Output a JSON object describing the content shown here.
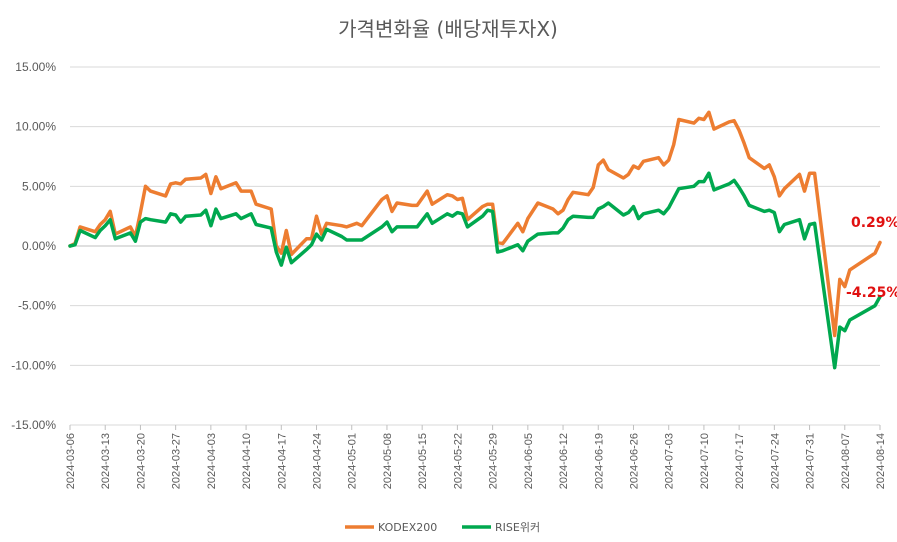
{
  "chart_data": {
    "type": "line",
    "title": "가격변화율 (배당재투자X)",
    "xlabel": "",
    "ylabel": "",
    "ylim": [
      -0.15,
      0.15
    ],
    "yticks": [
      0.15,
      0.1,
      0.05,
      0.0,
      -0.05,
      -0.1,
      -0.15
    ],
    "ytick_labels": [
      "15.00%",
      "10.00%",
      "5.00%",
      "0.00%",
      "-5.00%",
      "-10.00%",
      "-15.00%"
    ],
    "grid": true,
    "legend_position": "bottom",
    "x_tick_labels": [
      "2024-03-06",
      "2024-03-13",
      "2024-03-20",
      "2024-03-27",
      "2024-04-03",
      "2024-04-10",
      "2024-04-17",
      "2024-04-24",
      "2024-05-01",
      "2024-05-08",
      "2024-05-15",
      "2024-05-22",
      "2024-05-29",
      "2024-06-05",
      "2024-06-12",
      "2024-06-19",
      "2024-06-26",
      "2024-07-03",
      "2024-07-10",
      "2024-07-17",
      "2024-07-24",
      "2024-07-31",
      "2024-08-07",
      "2024-08-14"
    ],
    "x_start": "2024-03-06",
    "x_end": "2024-08-14",
    "series": [
      {
        "name": "KODEX200",
        "color": "#ED7D31",
        "end_label": "0.29%",
        "points": [
          [
            "2024-03-06",
            0.0
          ],
          [
            "2024-03-07",
            0.002
          ],
          [
            "2024-03-08",
            0.016
          ],
          [
            "2024-03-11",
            0.012
          ],
          [
            "2024-03-12",
            0.018
          ],
          [
            "2024-03-13",
            0.022
          ],
          [
            "2024-03-14",
            0.029
          ],
          [
            "2024-03-15",
            0.01
          ],
          [
            "2024-03-18",
            0.016
          ],
          [
            "2024-03-19",
            0.008
          ],
          [
            "2024-03-20",
            0.028
          ],
          [
            "2024-03-21",
            0.05
          ],
          [
            "2024-03-22",
            0.046
          ],
          [
            "2024-03-25",
            0.042
          ],
          [
            "2024-03-26",
            0.052
          ],
          [
            "2024-03-27",
            0.053
          ],
          [
            "2024-03-28",
            0.052
          ],
          [
            "2024-03-29",
            0.056
          ],
          [
            "2024-04-01",
            0.057
          ],
          [
            "2024-04-02",
            0.06
          ],
          [
            "2024-04-03",
            0.044
          ],
          [
            "2024-04-04",
            0.058
          ],
          [
            "2024-04-05",
            0.048
          ],
          [
            "2024-04-08",
            0.053
          ],
          [
            "2024-04-09",
            0.046
          ],
          [
            "2024-04-11",
            0.046
          ],
          [
            "2024-04-12",
            0.035
          ],
          [
            "2024-04-15",
            0.031
          ],
          [
            "2024-04-16",
            0.0
          ],
          [
            "2024-04-17",
            -0.006
          ],
          [
            "2024-04-18",
            0.013
          ],
          [
            "2024-04-19",
            -0.007
          ],
          [
            "2024-04-22",
            0.006
          ],
          [
            "2024-04-23",
            0.006
          ],
          [
            "2024-04-24",
            0.025
          ],
          [
            "2024-04-25",
            0.01
          ],
          [
            "2024-04-26",
            0.019
          ],
          [
            "2024-04-29",
            0.017
          ],
          [
            "2024-04-30",
            0.016
          ],
          [
            "2024-05-02",
            0.019
          ],
          [
            "2024-05-03",
            0.017
          ],
          [
            "2024-05-07",
            0.039
          ],
          [
            "2024-05-08",
            0.042
          ],
          [
            "2024-05-09",
            0.029
          ],
          [
            "2024-05-10",
            0.036
          ],
          [
            "2024-05-13",
            0.034
          ],
          [
            "2024-05-14",
            0.034
          ],
          [
            "2024-05-16",
            0.046
          ],
          [
            "2024-05-17",
            0.035
          ],
          [
            "2024-05-20",
            0.043
          ],
          [
            "2024-05-21",
            0.042
          ],
          [
            "2024-05-22",
            0.039
          ],
          [
            "2024-05-23",
            0.04
          ],
          [
            "2024-05-24",
            0.022
          ],
          [
            "2024-05-27",
            0.033
          ],
          [
            "2024-05-28",
            0.035
          ],
          [
            "2024-05-29",
            0.035
          ],
          [
            "2024-05-30",
            0.003
          ],
          [
            "2024-05-31",
            0.002
          ],
          [
            "2024-06-03",
            0.019
          ],
          [
            "2024-06-04",
            0.012
          ],
          [
            "2024-06-05",
            0.023
          ],
          [
            "2024-06-07",
            0.036
          ],
          [
            "2024-06-10",
            0.031
          ],
          [
            "2024-06-11",
            0.027
          ],
          [
            "2024-06-12",
            0.03
          ],
          [
            "2024-06-13",
            0.039
          ],
          [
            "2024-06-14",
            0.045
          ],
          [
            "2024-06-17",
            0.043
          ],
          [
            "2024-06-18",
            0.049
          ],
          [
            "2024-06-19",
            0.068
          ],
          [
            "2024-06-20",
            0.072
          ],
          [
            "2024-06-21",
            0.064
          ],
          [
            "2024-06-24",
            0.057
          ],
          [
            "2024-06-25",
            0.06
          ],
          [
            "2024-06-26",
            0.067
          ],
          [
            "2024-06-27",
            0.065
          ],
          [
            "2024-06-28",
            0.071
          ],
          [
            "2024-07-01",
            0.074
          ],
          [
            "2024-07-02",
            0.068
          ],
          [
            "2024-07-03",
            0.072
          ],
          [
            "2024-07-04",
            0.085
          ],
          [
            "2024-07-05",
            0.106
          ],
          [
            "2024-07-08",
            0.103
          ],
          [
            "2024-07-09",
            0.107
          ],
          [
            "2024-07-10",
            0.106
          ],
          [
            "2024-07-11",
            0.112
          ],
          [
            "2024-07-12",
            0.098
          ],
          [
            "2024-07-15",
            0.104
          ],
          [
            "2024-07-16",
            0.105
          ],
          [
            "2024-07-17",
            0.097
          ],
          [
            "2024-07-18",
            0.086
          ],
          [
            "2024-07-19",
            0.074
          ],
          [
            "2024-07-22",
            0.065
          ],
          [
            "2024-07-23",
            0.068
          ],
          [
            "2024-07-24",
            0.058
          ],
          [
            "2024-07-25",
            0.042
          ],
          [
            "2024-07-26",
            0.048
          ],
          [
            "2024-07-29",
            0.06
          ],
          [
            "2024-07-30",
            0.046
          ],
          [
            "2024-07-31",
            0.061
          ],
          [
            "2024-08-01",
            0.061
          ],
          [
            "2024-08-05",
            -0.075
          ],
          [
            "2024-08-06",
            -0.028
          ],
          [
            "2024-08-07",
            -0.034
          ],
          [
            "2024-08-08",
            -0.02
          ],
          [
            "2024-08-13",
            -0.006
          ],
          [
            "2024-08-14",
            0.0029
          ]
        ]
      },
      {
        "name": "RISE위커",
        "color": "#00A84F",
        "end_label": "-4.25%",
        "points": [
          [
            "2024-03-06",
            0.0
          ],
          [
            "2024-03-07",
            0.001
          ],
          [
            "2024-03-08",
            0.013
          ],
          [
            "2024-03-11",
            0.007
          ],
          [
            "2024-03-12",
            0.013
          ],
          [
            "2024-03-13",
            0.017
          ],
          [
            "2024-03-14",
            0.022
          ],
          [
            "2024-03-15",
            0.006
          ],
          [
            "2024-03-18",
            0.011
          ],
          [
            "2024-03-19",
            0.004
          ],
          [
            "2024-03-20",
            0.02
          ],
          [
            "2024-03-21",
            0.023
          ],
          [
            "2024-03-22",
            0.022
          ],
          [
            "2024-03-25",
            0.02
          ],
          [
            "2024-03-26",
            0.027
          ],
          [
            "2024-03-27",
            0.026
          ],
          [
            "2024-03-28",
            0.02
          ],
          [
            "2024-03-29",
            0.025
          ],
          [
            "2024-04-01",
            0.026
          ],
          [
            "2024-04-02",
            0.03
          ],
          [
            "2024-04-03",
            0.017
          ],
          [
            "2024-04-04",
            0.031
          ],
          [
            "2024-04-05",
            0.023
          ],
          [
            "2024-04-08",
            0.027
          ],
          [
            "2024-04-09",
            0.023
          ],
          [
            "2024-04-11",
            0.027
          ],
          [
            "2024-04-12",
            0.018
          ],
          [
            "2024-04-15",
            0.015
          ],
          [
            "2024-04-16",
            -0.005
          ],
          [
            "2024-04-17",
            -0.016
          ],
          [
            "2024-04-18",
            -0.001
          ],
          [
            "2024-04-19",
            -0.014
          ],
          [
            "2024-04-22",
            -0.003
          ],
          [
            "2024-04-23",
            0.001
          ],
          [
            "2024-04-24",
            0.01
          ],
          [
            "2024-04-25",
            0.005
          ],
          [
            "2024-04-26",
            0.014
          ],
          [
            "2024-04-29",
            0.008
          ],
          [
            "2024-04-30",
            0.005
          ],
          [
            "2024-05-02",
            0.005
          ],
          [
            "2024-05-03",
            0.005
          ],
          [
            "2024-05-07",
            0.016
          ],
          [
            "2024-05-08",
            0.02
          ],
          [
            "2024-05-09",
            0.012
          ],
          [
            "2024-05-10",
            0.016
          ],
          [
            "2024-05-13",
            0.016
          ],
          [
            "2024-05-14",
            0.016
          ],
          [
            "2024-05-16",
            0.027
          ],
          [
            "2024-05-17",
            0.019
          ],
          [
            "2024-05-20",
            0.027
          ],
          [
            "2024-05-21",
            0.025
          ],
          [
            "2024-05-22",
            0.028
          ],
          [
            "2024-05-23",
            0.027
          ],
          [
            "2024-05-24",
            0.016
          ],
          [
            "2024-05-27",
            0.025
          ],
          [
            "2024-05-28",
            0.03
          ],
          [
            "2024-05-29",
            0.029
          ],
          [
            "2024-05-30",
            -0.005
          ],
          [
            "2024-05-31",
            -0.004
          ],
          [
            "2024-06-03",
            0.001
          ],
          [
            "2024-06-04",
            -0.004
          ],
          [
            "2024-06-05",
            0.004
          ],
          [
            "2024-06-07",
            0.01
          ],
          [
            "2024-06-10",
            0.011
          ],
          [
            "2024-06-11",
            0.011
          ],
          [
            "2024-06-12",
            0.015
          ],
          [
            "2024-06-13",
            0.022
          ],
          [
            "2024-06-14",
            0.025
          ],
          [
            "2024-06-17",
            0.024
          ],
          [
            "2024-06-18",
            0.024
          ],
          [
            "2024-06-19",
            0.031
          ],
          [
            "2024-06-20",
            0.033
          ],
          [
            "2024-06-21",
            0.036
          ],
          [
            "2024-06-24",
            0.026
          ],
          [
            "2024-06-25",
            0.028
          ],
          [
            "2024-06-26",
            0.033
          ],
          [
            "2024-06-27",
            0.023
          ],
          [
            "2024-06-28",
            0.027
          ],
          [
            "2024-07-01",
            0.03
          ],
          [
            "2024-07-02",
            0.027
          ],
          [
            "2024-07-03",
            0.032
          ],
          [
            "2024-07-04",
            0.04
          ],
          [
            "2024-07-05",
            0.048
          ],
          [
            "2024-07-08",
            0.05
          ],
          [
            "2024-07-09",
            0.054
          ],
          [
            "2024-07-10",
            0.054
          ],
          [
            "2024-07-11",
            0.061
          ],
          [
            "2024-07-12",
            0.047
          ],
          [
            "2024-07-15",
            0.052
          ],
          [
            "2024-07-16",
            0.055
          ],
          [
            "2024-07-17",
            0.049
          ],
          [
            "2024-07-18",
            0.042
          ],
          [
            "2024-07-19",
            0.034
          ],
          [
            "2024-07-22",
            0.029
          ],
          [
            "2024-07-23",
            0.03
          ],
          [
            "2024-07-24",
            0.028
          ],
          [
            "2024-07-25",
            0.012
          ],
          [
            "2024-07-26",
            0.018
          ],
          [
            "2024-07-29",
            0.022
          ],
          [
            "2024-07-30",
            0.006
          ],
          [
            "2024-07-31",
            0.018
          ],
          [
            "2024-08-01",
            0.019
          ],
          [
            "2024-08-05",
            -0.102
          ],
          [
            "2024-08-06",
            -0.068
          ],
          [
            "2024-08-07",
            -0.071
          ],
          [
            "2024-08-08",
            -0.062
          ],
          [
            "2024-08-13",
            -0.05
          ],
          [
            "2024-08-14",
            -0.0425
          ]
        ]
      }
    ]
  }
}
